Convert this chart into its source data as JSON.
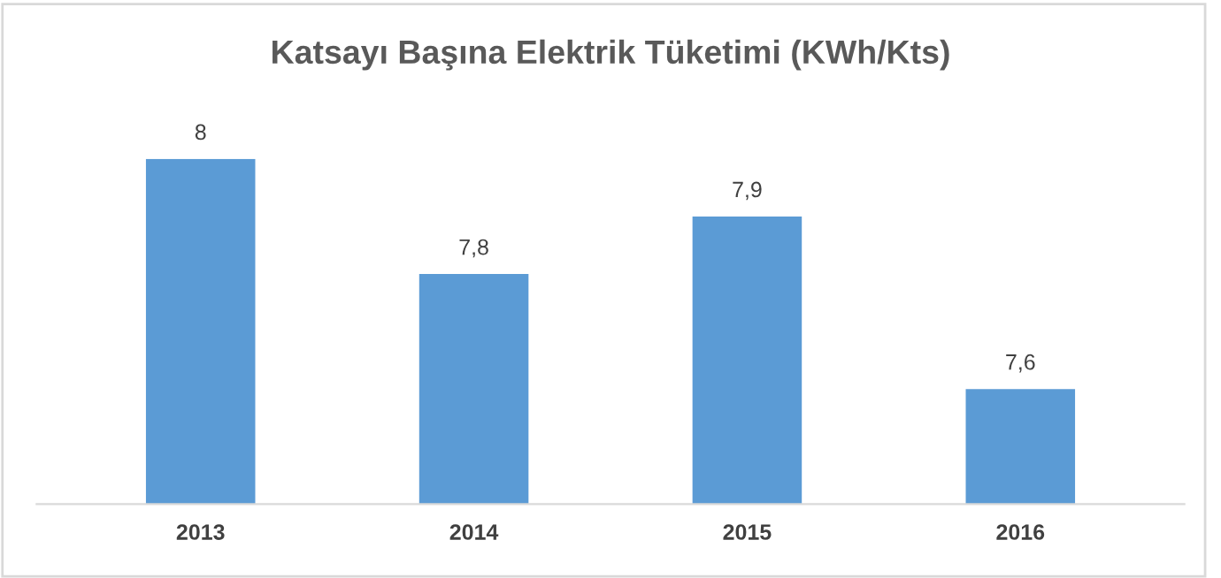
{
  "chart_data": {
    "type": "bar",
    "title": "Katsayı Başına Elektrik Tüketimi (KWh/Kts)",
    "categories": [
      "2013",
      "2014",
      "2015",
      "2016"
    ],
    "values": [
      8,
      7.8,
      7.9,
      7.6
    ],
    "value_labels": [
      "8",
      "7,8",
      "7,9",
      "7,6"
    ],
    "color": "#5b9bd5",
    "ylim": [
      7.4,
      8
    ],
    "tick_labels": "x",
    "grid": false,
    "legend": false
  }
}
